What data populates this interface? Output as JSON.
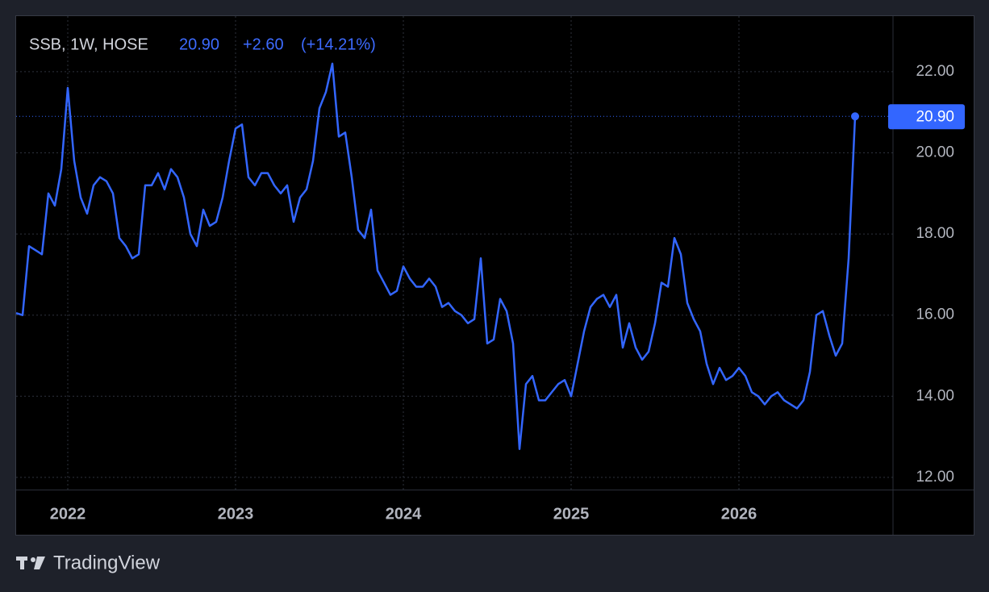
{
  "chart_data": {
    "type": "line",
    "title": "SSB, 1W, HOSE",
    "last_label": "20.90",
    "change": "+2.60",
    "change_percent": "(+14.21%)",
    "brand": "TradingView",
    "color": "#3366ff",
    "grid": true,
    "categories": [
      null,
      null,
      null,
      null,
      null,
      null,
      null,
      null,
      "2022",
      null,
      null,
      null,
      null,
      null,
      null,
      null,
      null,
      null,
      null,
      null,
      null,
      null,
      null,
      null,
      null,
      null,
      null,
      null,
      null,
      null,
      null,
      null,
      null,
      null,
      "2023",
      null,
      null,
      null,
      null,
      null,
      null,
      null,
      null,
      null,
      null,
      null,
      null,
      null,
      null,
      null,
      null,
      null,
      null,
      null,
      null,
      null,
      null,
      null,
      null,
      null,
      "2024",
      null,
      null,
      null,
      null,
      null,
      null,
      null,
      null,
      null,
      null,
      null,
      null,
      null,
      null,
      null,
      null,
      null,
      null,
      null,
      null,
      null,
      null,
      null,
      null,
      null,
      "2025",
      null,
      null,
      null,
      null,
      null,
      null,
      null,
      null,
      null,
      null,
      null,
      null,
      null,
      null,
      null,
      null,
      null,
      null,
      null,
      null,
      null,
      null,
      null,
      null,
      null,
      "2026",
      null,
      null,
      null,
      null,
      null,
      null,
      null,
      null,
      null,
      null,
      null,
      null,
      null,
      null,
      null,
      null,
      null,
      null
    ],
    "values": [
      16.05,
      16.0,
      17.7,
      17.6,
      17.5,
      19.0,
      18.7,
      19.6,
      21.6,
      19.8,
      18.9,
      18.5,
      19.2,
      19.4,
      19.3,
      19.0,
      17.9,
      17.7,
      17.4,
      17.5,
      19.2,
      19.2,
      19.5,
      19.1,
      19.6,
      19.4,
      18.9,
      18.0,
      17.7,
      18.6,
      18.2,
      18.3,
      18.9,
      19.8,
      20.6,
      20.7,
      19.4,
      19.2,
      19.5,
      19.5,
      19.2,
      19.0,
      19.2,
      18.3,
      18.9,
      19.1,
      19.8,
      21.1,
      21.5,
      22.2,
      20.4,
      20.5,
      19.4,
      18.1,
      17.9,
      18.6,
      17.1,
      16.8,
      16.5,
      16.6,
      17.2,
      16.9,
      16.7,
      16.7,
      16.9,
      16.7,
      16.2,
      16.3,
      16.1,
      16.0,
      15.8,
      15.9,
      17.4,
      15.3,
      15.4,
      16.4,
      16.1,
      15.3,
      12.7,
      14.3,
      14.5,
      13.9,
      13.9,
      14.1,
      14.3,
      14.4,
      14.0,
      14.8,
      15.6,
      16.2,
      16.4,
      16.5,
      16.2,
      16.5,
      15.2,
      15.8,
      15.2,
      14.9,
      15.1,
      15.8,
      16.8,
      16.7,
      17.9,
      17.5,
      16.3,
      15.9,
      15.6,
      14.8,
      14.3,
      14.7,
      14.4,
      14.5,
      14.7,
      14.5,
      14.1,
      14.0,
      13.8,
      14.0,
      14.1,
      13.9,
      13.8,
      13.7,
      13.9,
      14.6,
      16.0,
      16.1,
      15.5,
      15.0,
      15.3,
      17.4,
      20.9
    ],
    "ylim": [
      11.7,
      23.37
    ],
    "yticks": [
      {
        "value": 12,
        "label": "12.00"
      },
      {
        "value": 14,
        "label": "14.00"
      },
      {
        "value": 16,
        "label": "16.00"
      },
      {
        "value": 18,
        "label": "18.00"
      },
      {
        "value": 20,
        "label": "20.00"
      },
      {
        "value": 22,
        "label": "22.00"
      }
    ]
  }
}
